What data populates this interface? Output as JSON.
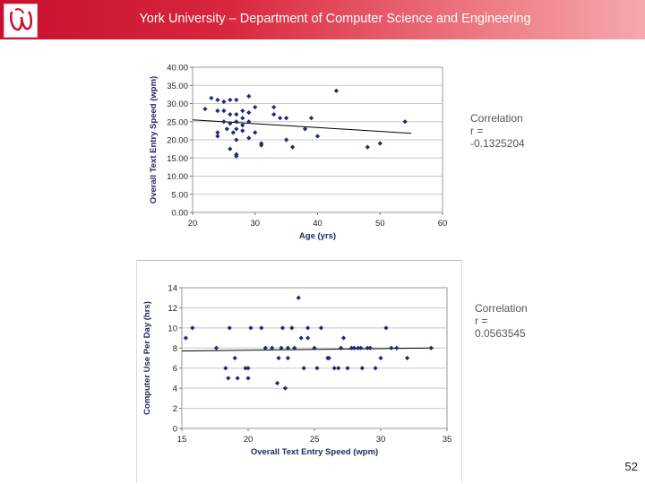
{
  "header": {
    "title": "York University – Department of Computer Science and Engineering"
  },
  "slide_number": "52",
  "logo": {
    "icon": "york-university-logo"
  },
  "correlations": [
    {
      "label": "Correlation",
      "sublabel": "r =",
      "value": "-0.1325204"
    },
    {
      "label": "Correlation",
      "sublabel": "r =",
      "value": "0.0563545"
    }
  ],
  "chart_data": [
    {
      "type": "scatter",
      "title": "",
      "xlabel": "Age (yrs)",
      "ylabel": "Overall Text Entry Speed (wpm)",
      "xlim": [
        20,
        60
      ],
      "ylim": [
        0,
        40
      ],
      "x_ticks": [
        "20",
        "30",
        "40",
        "50",
        "60"
      ],
      "y_ticks": [
        "0.00",
        "5.00",
        "10.00",
        "15.00",
        "20.00",
        "25.00",
        "30.00",
        "35.00",
        "40.00"
      ],
      "grid": true,
      "trendline": {
        "x": [
          20,
          55
        ],
        "y": [
          25.5,
          21.8
        ]
      },
      "points": [
        [
          22,
          28.5
        ],
        [
          23,
          31.5
        ],
        [
          24,
          31
        ],
        [
          24,
          28
        ],
        [
          24,
          21
        ],
        [
          24,
          22
        ],
        [
          25,
          25
        ],
        [
          25,
          28
        ],
        [
          25,
          30.5
        ],
        [
          25.5,
          23
        ],
        [
          26,
          31
        ],
        [
          26,
          27
        ],
        [
          26,
          24.5
        ],
        [
          26,
          17.5
        ],
        [
          26.5,
          22
        ],
        [
          27,
          31
        ],
        [
          27,
          27
        ],
        [
          27,
          25
        ],
        [
          27,
          23
        ],
        [
          27,
          20
        ],
        [
          27,
          16
        ],
        [
          27,
          15.5
        ],
        [
          28,
          28
        ],
        [
          28,
          24
        ],
        [
          28,
          26
        ],
        [
          28,
          22.5
        ],
        [
          29,
          32
        ],
        [
          29,
          27.5
        ],
        [
          29,
          25
        ],
        [
          29,
          20.5
        ],
        [
          30,
          29
        ],
        [
          30,
          22
        ],
        [
          31,
          19
        ],
        [
          31,
          18.5
        ],
        [
          33,
          29
        ],
        [
          33,
          27
        ],
        [
          34,
          26
        ],
        [
          35,
          26
        ],
        [
          35,
          20
        ],
        [
          36,
          18
        ],
        [
          38,
          23
        ],
        [
          39,
          26
        ],
        [
          40,
          21
        ],
        [
          43,
          33.5
        ],
        [
          48,
          18
        ],
        [
          50,
          19
        ],
        [
          54,
          25
        ]
      ]
    },
    {
      "type": "scatter",
      "title": "",
      "xlabel": "Overall Text Entry Speed (wpm)",
      "ylabel": "Computer Use Per Day (hrs)",
      "xlim": [
        15,
        35
      ],
      "ylim": [
        0,
        14
      ],
      "x_ticks": [
        "15",
        "20",
        "25",
        "30",
        "35"
      ],
      "y_ticks": [
        "0",
        "2",
        "4",
        "6",
        "8",
        "10",
        "12",
        "14"
      ],
      "grid": true,
      "trendline": {
        "x": [
          15,
          34
        ],
        "y": [
          7.7,
          8.0
        ]
      },
      "points": [
        [
          15.3,
          9
        ],
        [
          15.8,
          10
        ],
        [
          17.6,
          8
        ],
        [
          18.3,
          6
        ],
        [
          18.5,
          5
        ],
        [
          18.6,
          10
        ],
        [
          19,
          7
        ],
        [
          19.2,
          5
        ],
        [
          19.8,
          6
        ],
        [
          20,
          5
        ],
        [
          20,
          6
        ],
        [
          20.2,
          10
        ],
        [
          21,
          10
        ],
        [
          21.3,
          8
        ],
        [
          21.8,
          8
        ],
        [
          22.2,
          4.5
        ],
        [
          22.3,
          7
        ],
        [
          22.5,
          8
        ],
        [
          22.6,
          10
        ],
        [
          22.8,
          4
        ],
        [
          23,
          7
        ],
        [
          23,
          8
        ],
        [
          23.3,
          10
        ],
        [
          23.5,
          8
        ],
        [
          23.8,
          13
        ],
        [
          24,
          9
        ],
        [
          24.2,
          6
        ],
        [
          24.5,
          9
        ],
        [
          24.5,
          10
        ],
        [
          25,
          8
        ],
        [
          25.2,
          6
        ],
        [
          25.5,
          10
        ],
        [
          26,
          7
        ],
        [
          26.1,
          7
        ],
        [
          26.5,
          6
        ],
        [
          26.8,
          6
        ],
        [
          27,
          8
        ],
        [
          27.2,
          9
        ],
        [
          27.5,
          6
        ],
        [
          27.8,
          8
        ],
        [
          28,
          8
        ],
        [
          28.3,
          8
        ],
        [
          28.5,
          8
        ],
        [
          28.6,
          6
        ],
        [
          29,
          8
        ],
        [
          29.2,
          8
        ],
        [
          29.6,
          6
        ],
        [
          30,
          7
        ],
        [
          30.4,
          10
        ],
        [
          30.8,
          8
        ],
        [
          31.2,
          8
        ],
        [
          32,
          7
        ],
        [
          33.8,
          8
        ]
      ]
    }
  ]
}
